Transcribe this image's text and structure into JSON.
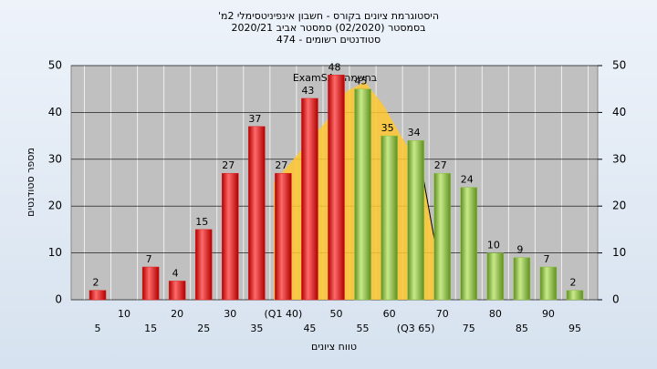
{
  "chart_data": {
    "type": "bar",
    "title": "היסטוגרמת ציונים בקורס - חשבון אינפיניטסימלי 2מ'",
    "subtitle": [
      "בסמסטר  (02/2020)  סמסטר אביב 2020/21",
      "סטודנטים רשומים - 474"
    ],
    "annotation": "בחשמה : ExamSA",
    "x_label": "טווח ציונים",
    "y_label": "מספר סטודנטים",
    "categories": [
      "5",
      "10",
      "15",
      "20",
      "25",
      "30",
      "35",
      "(Q1 40)",
      "45",
      "50",
      "55",
      "60",
      "(Q3 65)",
      "70",
      "75",
      "80",
      "85",
      "90",
      "95"
    ],
    "series": [
      {
        "name": "ציונים",
        "colors": [
          "#e02020",
          "#e02020",
          "#e02020",
          "#e02020",
          "#e02020",
          "#e02020",
          "#e02020",
          "#e02020",
          "#e02020",
          "#e02020",
          "#8cc040",
          "#8cc040",
          "#8cc040",
          "#8cc040",
          "#8cc040",
          "#8cc040",
          "#8cc040",
          "#8cc040",
          "#8cc040"
        ],
        "values": [
          2,
          0,
          7,
          4,
          15,
          27,
          37,
          27,
          43,
          48,
          45,
          35,
          34,
          27,
          24,
          10,
          9,
          7,
          2
        ]
      }
    ],
    "ylim": [
      0,
      50
    ],
    "yticks": [
      0,
      10,
      20,
      30,
      40,
      50
    ],
    "y2lim": [
      0,
      50
    ],
    "y2ticks": [
      0,
      10,
      20,
      30,
      40,
      50
    ],
    "grid": true
  }
}
